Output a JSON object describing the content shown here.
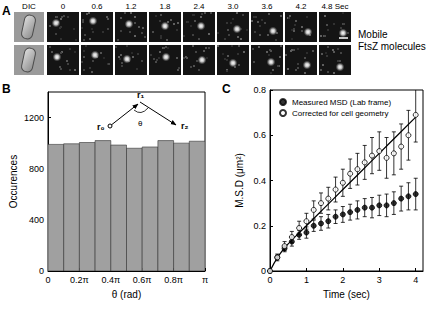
{
  "panel_a": {
    "title": "A",
    "header_left": "DIC",
    "times": [
      "0",
      "0.6",
      "1.2",
      "1.8",
      "2.4",
      "3.0",
      "3.6",
      "4.2",
      "4.8 Sec"
    ],
    "row_label_lines": [
      "Mobile",
      "FtsZ molecules"
    ]
  },
  "chart_data": [
    {
      "type": "histogram",
      "title": "B",
      "xlabel": "θ (rad)",
      "ylabel": "Occurences",
      "bins": [
        0,
        0.314159,
        0.628319,
        0.942478,
        1.256637,
        1.570796,
        1.884956,
        2.199115,
        2.513274,
        2.827433,
        3.141593
      ],
      "values": [
        990,
        995,
        1005,
        1020,
        985,
        960,
        970,
        1020,
        1000,
        1015
      ],
      "color": "#a0a0a0",
      "xlim": [
        0,
        3.141593
      ],
      "xticks": [
        0,
        {
          "value": 0.628319,
          "label": "0.2π"
        },
        {
          "value": 1.256637,
          "label": "0.4π"
        },
        {
          "value": 1.884956,
          "label": "0.6π"
        },
        {
          "value": 2.513274,
          "label": "0.8π"
        },
        {
          "value": 3.141593,
          "label": "π"
        }
      ],
      "ylim": [
        0,
        1400
      ],
      "yticks": [
        0,
        400,
        800,
        1200
      ],
      "grid": false,
      "inset_labels": [
        "r₀",
        "r₁",
        "r₂",
        "θ"
      ]
    },
    {
      "type": "scatter",
      "title": "C",
      "xlabel": "Time (sec)",
      "ylabel": "M.S.D (μm²)",
      "xlim": [
        0,
        4.2
      ],
      "xticks": [
        0,
        1,
        2,
        3,
        4
      ],
      "ylim": [
        0,
        0.8
      ],
      "yticks": [
        0,
        0.2,
        0.4,
        0.6,
        0.8
      ],
      "grid": false,
      "legend": "upper left",
      "series": [
        {
          "name": "Measured MSD (Lab frame)",
          "type": "scatter",
          "marker": "filled_circle",
          "color": "#000000",
          "x": [
            0,
            0.2,
            0.4,
            0.6,
            0.8,
            1.0,
            1.2,
            1.4,
            1.6,
            1.8,
            2.0,
            2.2,
            2.4,
            2.6,
            2.8,
            3.0,
            3.2,
            3.4,
            3.6,
            3.8,
            4.0
          ],
          "values": [
            0,
            0.06,
            0.1,
            0.13,
            0.16,
            0.17,
            0.2,
            0.21,
            0.22,
            0.24,
            0.25,
            0.26,
            0.27,
            0.28,
            0.28,
            0.29,
            0.29,
            0.3,
            0.32,
            0.33,
            0.34
          ],
          "errors": [
            0,
            0.01,
            0.015,
            0.02,
            0.02,
            0.025,
            0.025,
            0.03,
            0.03,
            0.03,
            0.035,
            0.035,
            0.04,
            0.04,
            0.045,
            0.045,
            0.05,
            0.05,
            0.055,
            0.06,
            0.07
          ]
        },
        {
          "name": "Corrected for cell geometry",
          "type": "scatter",
          "marker": "open_circle",
          "color": "#000000",
          "x": [
            0,
            0.2,
            0.4,
            0.6,
            0.8,
            1.0,
            1.2,
            1.4,
            1.6,
            1.8,
            2.0,
            2.2,
            2.4,
            2.6,
            2.8,
            3.0,
            3.2,
            3.4,
            3.6,
            3.8,
            4.0
          ],
          "values": [
            0,
            0.06,
            0.11,
            0.15,
            0.19,
            0.22,
            0.27,
            0.3,
            0.32,
            0.36,
            0.39,
            0.43,
            0.45,
            0.48,
            0.51,
            0.53,
            0.5,
            0.52,
            0.55,
            0.6,
            0.69
          ],
          "errors": [
            0,
            0.015,
            0.02,
            0.025,
            0.03,
            0.035,
            0.04,
            0.045,
            0.05,
            0.055,
            0.06,
            0.065,
            0.07,
            0.075,
            0.08,
            0.085,
            0.09,
            0.095,
            0.1,
            0.11,
            0.12
          ]
        },
        {
          "type": "line",
          "line_style": "solid",
          "color": "#000000",
          "x": [
            0,
            0.25,
            0.5,
            1.0,
            1.5,
            2.0,
            2.5,
            3.0,
            3.5,
            4.0
          ],
          "values": [
            0,
            0.07,
            0.12,
            0.2,
            0.28,
            0.36,
            0.44,
            0.52,
            0.6,
            0.68
          ]
        }
      ]
    }
  ]
}
